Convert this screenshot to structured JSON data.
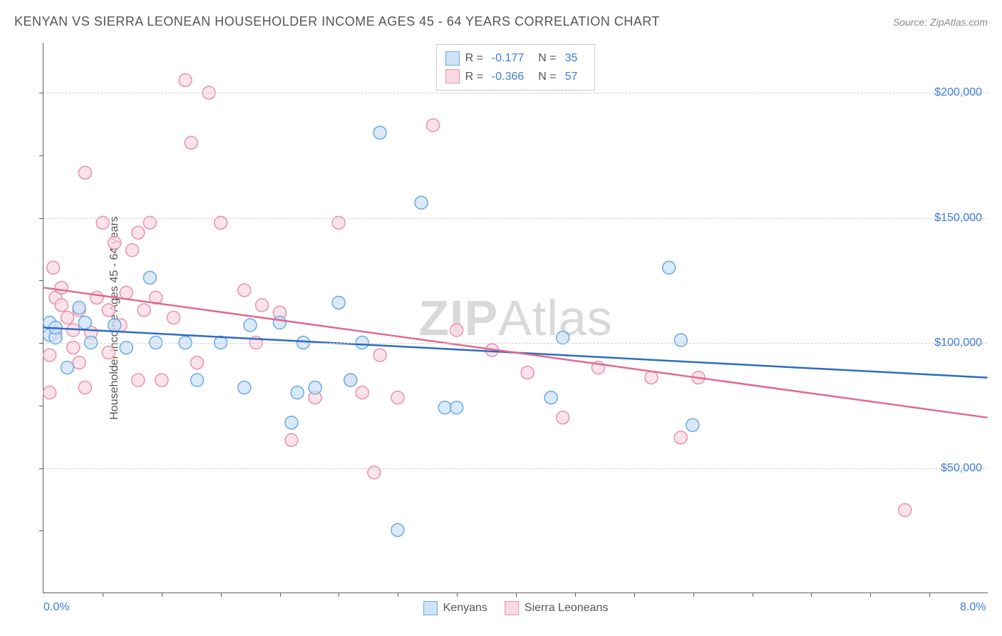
{
  "title": "KENYAN VS SIERRA LEONEAN HOUSEHOLDER INCOME AGES 45 - 64 YEARS CORRELATION CHART",
  "source": "Source: ZipAtlas.com",
  "ylabel": "Householder Income Ages 45 - 64 years",
  "watermark_bold": "ZIP",
  "watermark_rest": "Atlas",
  "chart": {
    "type": "scatter",
    "xlim": [
      0,
      8
    ],
    "ylim": [
      0,
      220000
    ],
    "x_axis_labels": [
      {
        "pos": 0,
        "text": "0.0%"
      },
      {
        "pos": 8,
        "text": "8.0%"
      }
    ],
    "x_ticks": [
      0.5,
      1.0,
      1.5,
      2.0,
      2.5,
      3.0,
      3.5,
      4.0,
      4.5,
      5.0,
      5.5,
      6.0,
      6.5,
      7.0,
      7.5
    ],
    "y_gridlines": [
      50000,
      100000,
      150000,
      200000
    ],
    "y_tick_labels": [
      "$50,000",
      "$100,000",
      "$150,000",
      "$200,000"
    ],
    "y_minor_ticks": [
      25000,
      75000,
      125000,
      175000
    ],
    "grid_color": "#d0d0d0",
    "background_color": "#ffffff",
    "axis_color": "#606060",
    "tick_label_color": "#3b7dd8",
    "marker_radius": 9,
    "marker_stroke_width": 1.5,
    "line_width": 2.5,
    "series": [
      {
        "name": "Kenyans",
        "fill": "#cde3f7",
        "stroke": "#6aa9e6",
        "line_color": "#2d6bc4",
        "r_value": "-0.177",
        "n_value": "35",
        "regression": {
          "x1": 0,
          "y1": 106000,
          "x2": 8,
          "y2": 86000
        },
        "points": [
          [
            0.05,
            103000
          ],
          [
            0.05,
            108000
          ],
          [
            0.1,
            102000
          ],
          [
            0.1,
            106000
          ],
          [
            0.2,
            90000
          ],
          [
            0.3,
            114000
          ],
          [
            0.35,
            108000
          ],
          [
            0.4,
            100000
          ],
          [
            0.6,
            107000
          ],
          [
            0.7,
            98000
          ],
          [
            0.9,
            126000
          ],
          [
            0.95,
            100000
          ],
          [
            1.2,
            100000
          ],
          [
            1.3,
            85000
          ],
          [
            1.5,
            100000
          ],
          [
            1.7,
            82000
          ],
          [
            1.75,
            107000
          ],
          [
            2.0,
            108000
          ],
          [
            2.1,
            68000
          ],
          [
            2.15,
            80000
          ],
          [
            2.2,
            100000
          ],
          [
            2.3,
            82000
          ],
          [
            2.5,
            116000
          ],
          [
            2.6,
            85000
          ],
          [
            2.7,
            100000
          ],
          [
            2.85,
            184000
          ],
          [
            3.0,
            25000
          ],
          [
            3.2,
            156000
          ],
          [
            3.4,
            74000
          ],
          [
            3.5,
            74000
          ],
          [
            4.3,
            78000
          ],
          [
            4.4,
            102000
          ],
          [
            5.3,
            130000
          ],
          [
            5.4,
            101000
          ],
          [
            5.5,
            67000
          ]
        ]
      },
      {
        "name": "Sierra Leoneans",
        "fill": "#f9d9e2",
        "stroke": "#e892ab",
        "line_color": "#e06a8d",
        "r_value": "-0.366",
        "n_value": "57",
        "regression": {
          "x1": 0,
          "y1": 122000,
          "x2": 8,
          "y2": 70000
        },
        "points": [
          [
            0.05,
            80000
          ],
          [
            0.05,
            95000
          ],
          [
            0.08,
            130000
          ],
          [
            0.1,
            118000
          ],
          [
            0.1,
            104000
          ],
          [
            0.15,
            115000
          ],
          [
            0.15,
            122000
          ],
          [
            0.2,
            110000
          ],
          [
            0.25,
            98000
          ],
          [
            0.25,
            105000
          ],
          [
            0.3,
            113000
          ],
          [
            0.3,
            92000
          ],
          [
            0.35,
            168000
          ],
          [
            0.35,
            82000
          ],
          [
            0.4,
            104000
          ],
          [
            0.45,
            118000
          ],
          [
            0.5,
            148000
          ],
          [
            0.55,
            113000
          ],
          [
            0.55,
            96000
          ],
          [
            0.6,
            140000
          ],
          [
            0.65,
            107000
          ],
          [
            0.7,
            120000
          ],
          [
            0.75,
            137000
          ],
          [
            0.8,
            144000
          ],
          [
            0.8,
            85000
          ],
          [
            0.85,
            113000
          ],
          [
            0.9,
            148000
          ],
          [
            0.95,
            118000
          ],
          [
            1.0,
            85000
          ],
          [
            1.1,
            110000
          ],
          [
            1.2,
            205000
          ],
          [
            1.25,
            180000
          ],
          [
            1.3,
            92000
          ],
          [
            1.4,
            200000
          ],
          [
            1.5,
            148000
          ],
          [
            1.7,
            121000
          ],
          [
            1.8,
            100000
          ],
          [
            1.85,
            115000
          ],
          [
            2.0,
            112000
          ],
          [
            2.1,
            61000
          ],
          [
            2.3,
            78000
          ],
          [
            2.5,
            148000
          ],
          [
            2.6,
            85000
          ],
          [
            2.7,
            80000
          ],
          [
            2.8,
            48000
          ],
          [
            2.85,
            95000
          ],
          [
            3.0,
            78000
          ],
          [
            3.3,
            187000
          ],
          [
            3.5,
            105000
          ],
          [
            3.8,
            97000
          ],
          [
            4.1,
            88000
          ],
          [
            4.4,
            70000
          ],
          [
            4.7,
            90000
          ],
          [
            5.15,
            86000
          ],
          [
            5.4,
            62000
          ],
          [
            5.55,
            86000
          ],
          [
            7.3,
            33000
          ]
        ]
      }
    ]
  },
  "legend_bottom": [
    {
      "name": "Kenyans",
      "fill": "#cde3f7",
      "stroke": "#6aa9e6"
    },
    {
      "name": "Sierra Leoneans",
      "fill": "#f9d9e2",
      "stroke": "#e892ab"
    }
  ]
}
